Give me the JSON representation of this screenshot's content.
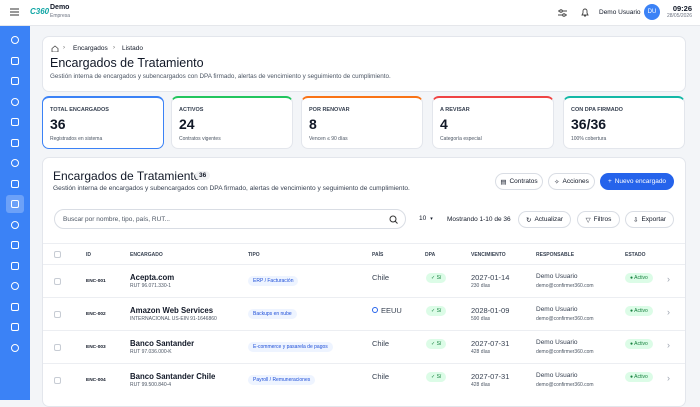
{
  "topbar": {
    "brand": "C360",
    "company_name": "Demo",
    "company_type": "Empresa",
    "user_name": "Demo Usuario",
    "user_initials": "DU",
    "time": "09:26",
    "date": "28/05/2026"
  },
  "breadcrumb": [
    "Encargados",
    "Listado"
  ],
  "header": {
    "title": "Encargados de Tratamiento",
    "subtitle": "Gestión interna de encargados y subencargados con DPA firmado, alertas de vencimiento y seguimiento de cumplimiento."
  },
  "stats": [
    {
      "label": "TOTAL ENCARGADOS",
      "value": "36",
      "note": "Registrados en sistema"
    },
    {
      "label": "ACTIVOS",
      "value": "24",
      "note": "Contratos vigentes"
    },
    {
      "label": "POR RENOVAR",
      "value": "8",
      "note": "Vencen ≤ 90 días"
    },
    {
      "label": "A REVISAR",
      "value": "4",
      "note": "Categoría especial"
    },
    {
      "label": "CON DPA FIRMADO",
      "value": "36/36",
      "note": "100% cobertura"
    }
  ],
  "list": {
    "title": "Encargados de Tratamiento",
    "count": "36",
    "subtitle": "Gestión interna de encargados y subencargados con DPA firmado, alertas de vencimiento y seguimiento de cumplimiento.",
    "buttons": [
      "Contratos",
      "Acciones",
      "Nuevo encargado"
    ],
    "search_placeholder": "Buscar por nombre, tipo, país, RUT...",
    "page_size": "10",
    "showing": "Mostrando 1-10 de 36",
    "tools": [
      "Actualizar",
      "Filtros",
      "Exportar"
    ]
  },
  "table": {
    "columns": [
      "ID",
      "ENCARGADO",
      "TIPO",
      "PAÍS",
      "DPA",
      "VENCIMIENTO",
      "RESPONSABLE",
      "ESTADO"
    ],
    "rows": [
      {
        "id": "ENC-001",
        "name": "Acepta.com",
        "sub": "RUT 96.071.330-1",
        "type": "ERP / Facturación",
        "country": "Chile",
        "dpa": "Sí",
        "due": "2027-01-14",
        "days": "230 días",
        "owner": "Demo Usuario",
        "email": "demo@confirmer360.com",
        "status": "Activo"
      },
      {
        "id": "ENC-002",
        "name": "Amazon Web Services",
        "sub": "INTERNACIONAL US-EIN 91-1646860",
        "type": "Backups en nube",
        "country": "EEUU",
        "dpa": "Sí",
        "due": "2028-01-09",
        "days": "590 días",
        "owner": "Demo Usuario",
        "email": "demo@confirmer360.com",
        "status": "Activo"
      },
      {
        "id": "ENC-003",
        "name": "Banco Santander",
        "sub": "RUT 97.036.000-K",
        "type": "E-commerce y pasarela de pagos",
        "country": "Chile",
        "dpa": "Sí",
        "due": "2027-07-31",
        "days": "428 días",
        "owner": "Demo Usuario",
        "email": "demo@confirmer360.com",
        "status": "Activo"
      },
      {
        "id": "ENC-004",
        "name": "Banco Santander Chile",
        "sub": "RUT 99.500.840-4",
        "type": "Payroll / Remuneraciones",
        "country": "Chile",
        "dpa": "Sí",
        "due": "2027-07-31",
        "days": "428 días",
        "owner": "Demo Usuario",
        "email": "demo@confirmer360.com",
        "status": "Activo"
      }
    ]
  }
}
